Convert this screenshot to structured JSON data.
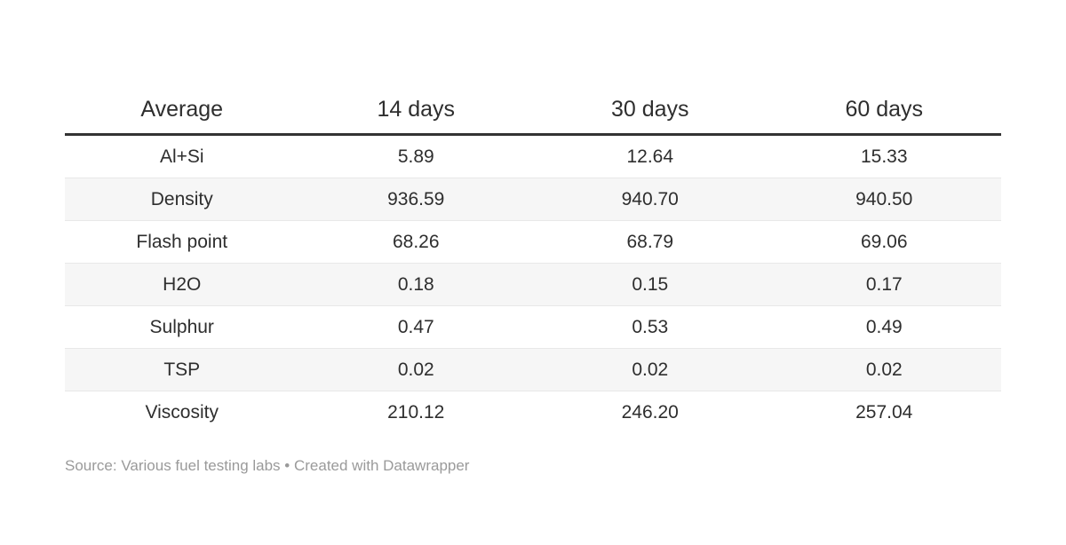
{
  "chart_data": {
    "type": "table",
    "columns": [
      "Average",
      "14 days",
      "30 days",
      "60 days"
    ],
    "rows": [
      {
        "label": "Al+Si",
        "values": [
          "5.89",
          "12.64",
          "15.33"
        ]
      },
      {
        "label": "Density",
        "values": [
          "936.59",
          "940.70",
          "940.50"
        ]
      },
      {
        "label": "Flash point",
        "values": [
          "68.26",
          "68.79",
          "69.06"
        ]
      },
      {
        "label": "H2O",
        "values": [
          "0.18",
          "0.15",
          "0.17"
        ]
      },
      {
        "label": "Sulphur",
        "values": [
          "0.47",
          "0.53",
          "0.49"
        ]
      },
      {
        "label": "TSP",
        "values": [
          "0.02",
          "0.02",
          "0.02"
        ]
      },
      {
        "label": "Viscosity",
        "values": [
          "210.12",
          "246.20",
          "257.04"
        ]
      }
    ],
    "title": "",
    "layout_hints": {
      "striped_rows": true,
      "header_rule": true,
      "all_cells_centered": true
    }
  },
  "footer": {
    "source_label": "Source:",
    "source_text": "Various fuel testing labs",
    "separator": "•",
    "attribution": "Created with Datawrapper"
  },
  "colors": {
    "header_rule": "#333333",
    "stripe": "#f6f6f6",
    "row_divider": "#e8e8e8",
    "text": "#2e2e2e",
    "muted_text": "#9a9a9a",
    "background": "#ffffff"
  }
}
